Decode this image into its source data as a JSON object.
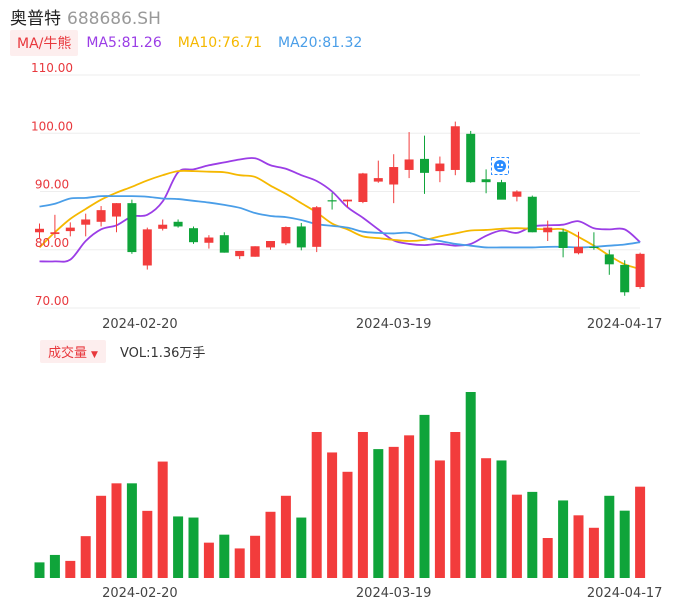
{
  "header": {
    "stock_name": "奥普特",
    "stock_code": "688686.SH"
  },
  "ma_bar": {
    "tag_label": "MA/牛熊",
    "items": [
      {
        "label": "MA5:81.26",
        "color": "#9b3de6"
      },
      {
        "label": "MA10:76.71",
        "color": "#f5b800"
      },
      {
        "label": "MA20:81.32",
        "color": "#4a9ee8"
      }
    ]
  },
  "volume_bar": {
    "tag_label": "成交量",
    "vol_label": "VOL:1.36万手"
  },
  "colors": {
    "up": "#f23c3c",
    "down": "#0fa43a",
    "grid": "#eeeeee",
    "axis_text": "#e8383d"
  },
  "badge_icon": "robot-badge-icon",
  "chart_data": [
    {
      "type": "candlestick",
      "y_ticks": [
        "110.00",
        "100.00",
        "90.00",
        "80.00",
        "70.00"
      ],
      "ylim": [
        70,
        110
      ],
      "x_tick_labels": [
        "2024-02-20",
        "2024-03-19",
        "2024-04-17"
      ],
      "x_tick_index": [
        6,
        23,
        38
      ],
      "candles": [
        {
          "o": 83.0,
          "h": 84.5,
          "l": 82.0,
          "c": 83.6
        },
        {
          "o": 82.7,
          "h": 86.0,
          "l": 82.0,
          "c": 83.0
        },
        {
          "o": 83.2,
          "h": 84.7,
          "l": 82.3,
          "c": 83.8
        },
        {
          "o": 84.3,
          "h": 86.2,
          "l": 82.3,
          "c": 85.2
        },
        {
          "o": 84.8,
          "h": 87.5,
          "l": 84.0,
          "c": 86.8
        },
        {
          "o": 85.7,
          "h": 88.0,
          "l": 83.0,
          "c": 88.0
        },
        {
          "o": 88.0,
          "h": 88.6,
          "l": 79.3,
          "c": 79.6
        },
        {
          "o": 77.3,
          "h": 83.8,
          "l": 76.6,
          "c": 83.5
        },
        {
          "o": 83.6,
          "h": 85.2,
          "l": 83.3,
          "c": 84.3
        },
        {
          "o": 84.8,
          "h": 85.2,
          "l": 83.8,
          "c": 84.0
        },
        {
          "o": 83.7,
          "h": 84.0,
          "l": 81.0,
          "c": 81.3
        },
        {
          "o": 81.2,
          "h": 82.5,
          "l": 80.2,
          "c": 82.1
        },
        {
          "o": 82.5,
          "h": 83.0,
          "l": 79.5,
          "c": 79.5
        },
        {
          "o": 78.9,
          "h": 79.4,
          "l": 78.4,
          "c": 79.8
        },
        {
          "o": 78.8,
          "h": 80.6,
          "l": 78.8,
          "c": 80.6
        },
        {
          "o": 80.4,
          "h": 81.5,
          "l": 80.0,
          "c": 81.5
        },
        {
          "o": 81.1,
          "h": 84.0,
          "l": 80.8,
          "c": 83.9
        },
        {
          "o": 84.0,
          "h": 84.6,
          "l": 79.9,
          "c": 80.4
        },
        {
          "o": 80.5,
          "h": 87.5,
          "l": 79.6,
          "c": 87.3
        },
        {
          "o": 88.5,
          "h": 89.8,
          "l": 86.9,
          "c": 88.4
        },
        {
          "o": 88.3,
          "h": 88.6,
          "l": 87.3,
          "c": 88.6
        },
        {
          "o": 88.2,
          "h": 93.2,
          "l": 88.0,
          "c": 93.1
        },
        {
          "o": 91.7,
          "h": 95.3,
          "l": 91.5,
          "c": 92.3
        },
        {
          "o": 91.2,
          "h": 96.4,
          "l": 88.0,
          "c": 94.2
        },
        {
          "o": 93.7,
          "h": 100.2,
          "l": 92.3,
          "c": 95.5
        },
        {
          "o": 95.6,
          "h": 99.6,
          "l": 89.6,
          "c": 93.2
        },
        {
          "o": 93.5,
          "h": 96.0,
          "l": 91.6,
          "c": 94.8
        },
        {
          "o": 93.7,
          "h": 102.0,
          "l": 92.8,
          "c": 101.2
        },
        {
          "o": 99.9,
          "h": 100.4,
          "l": 91.5,
          "c": 91.6
        },
        {
          "o": 92.1,
          "h": 93.8,
          "l": 89.7,
          "c": 91.6
        },
        {
          "o": 91.6,
          "h": 92.0,
          "l": 88.8,
          "c": 88.6
        },
        {
          "o": 89.1,
          "h": 90.2,
          "l": 88.3,
          "c": 90.0
        },
        {
          "o": 89.1,
          "h": 89.3,
          "l": 83.0,
          "c": 83.0
        },
        {
          "o": 83.0,
          "h": 85.0,
          "l": 81.5,
          "c": 83.8
        },
        {
          "o": 83.1,
          "h": 83.6,
          "l": 78.7,
          "c": 80.3
        },
        {
          "o": 79.4,
          "h": 83.1,
          "l": 79.2,
          "c": 80.5
        },
        {
          "o": 80.5,
          "h": 83.0,
          "l": 80.0,
          "c": 80.3
        },
        {
          "o": 79.2,
          "h": 80.0,
          "l": 75.7,
          "c": 77.5
        },
        {
          "o": 77.4,
          "h": 78.2,
          "l": 72.1,
          "c": 72.7
        },
        {
          "o": 73.6,
          "h": 79.5,
          "l": 73.3,
          "c": 79.3
        }
      ],
      "ma_lines": [
        {
          "name": "MA5",
          "color": "#9b3de6",
          "values": [
            78.0,
            78.0,
            78.3,
            81.5,
            83.5,
            84.2,
            85.7,
            86.0,
            88.3,
            93.3,
            93.8,
            94.5,
            95.0,
            95.5,
            95.7,
            94.5,
            93.9,
            92.8,
            91.8,
            90.0,
            87.3,
            85.5,
            83.5,
            81.6,
            81.0,
            80.8,
            81.0,
            80.7,
            81.0,
            82.4,
            83.3,
            82.9,
            84.0,
            84.2,
            84.3,
            84.9,
            83.7,
            83.5,
            83.5,
            81.3
          ]
        },
        {
          "name": "MA10",
          "color": "#f5b800",
          "values": [
            80.4,
            83.0,
            85.3,
            87.0,
            88.6,
            89.8,
            90.8,
            91.9,
            92.8,
            93.5,
            93.5,
            93.4,
            93.3,
            92.8,
            92.5,
            91.0,
            89.6,
            88.0,
            86.4,
            84.5,
            83.5,
            82.3,
            82.0,
            81.7,
            81.5,
            81.7,
            82.3,
            82.8,
            83.3,
            83.4,
            83.6,
            83.7,
            83.6,
            83.5,
            83.5,
            82.2,
            80.7,
            79.0,
            77.5,
            76.7
          ]
        },
        {
          "name": "MA20",
          "color": "#4a9ee8",
          "values": [
            87.4,
            87.9,
            88.8,
            88.9,
            89.2,
            89.2,
            89.2,
            89.1,
            88.8,
            88.7,
            88.4,
            88.1,
            87.7,
            87.2,
            86.3,
            85.8,
            85.6,
            85.1,
            84.4,
            84.1,
            83.8,
            83.1,
            82.9,
            82.8,
            82.9,
            82.0,
            81.5,
            81.0,
            80.7,
            80.4,
            80.4,
            80.4,
            80.4,
            80.5,
            80.5,
            80.4,
            80.5,
            80.7,
            80.9,
            81.3
          ]
        }
      ]
    },
    {
      "type": "bar",
      "title": "成交量",
      "x_tick_labels": [
        "2024-02-20",
        "2024-03-19",
        "2024-04-17"
      ],
      "x_tick_index": [
        6,
        23,
        38
      ],
      "max_value": 1.0,
      "values": [
        0.084,
        0.124,
        0.092,
        0.225,
        0.442,
        0.509,
        0.509,
        0.361,
        0.626,
        0.331,
        0.325,
        0.19,
        0.233,
        0.159,
        0.227,
        0.356,
        0.442,
        0.325,
        0.785,
        0.675,
        0.571,
        0.785,
        0.693,
        0.705,
        0.767,
        0.877,
        0.632,
        0.785,
        1.0,
        0.644,
        0.632,
        0.448,
        0.463,
        0.215,
        0.417,
        0.337,
        0.27,
        0.442,
        0.362,
        0.491
      ],
      "directions": [
        "down",
        "down",
        "up",
        "up",
        "up",
        "up",
        "down",
        "up",
        "up",
        "down",
        "down",
        "up",
        "down",
        "up",
        "up",
        "up",
        "up",
        "down",
        "up",
        "up",
        "up",
        "up",
        "down",
        "up",
        "up",
        "down",
        "up",
        "up",
        "down",
        "up",
        "down",
        "up",
        "down",
        "up",
        "down",
        "up",
        "up",
        "down",
        "down",
        "up"
      ]
    }
  ]
}
